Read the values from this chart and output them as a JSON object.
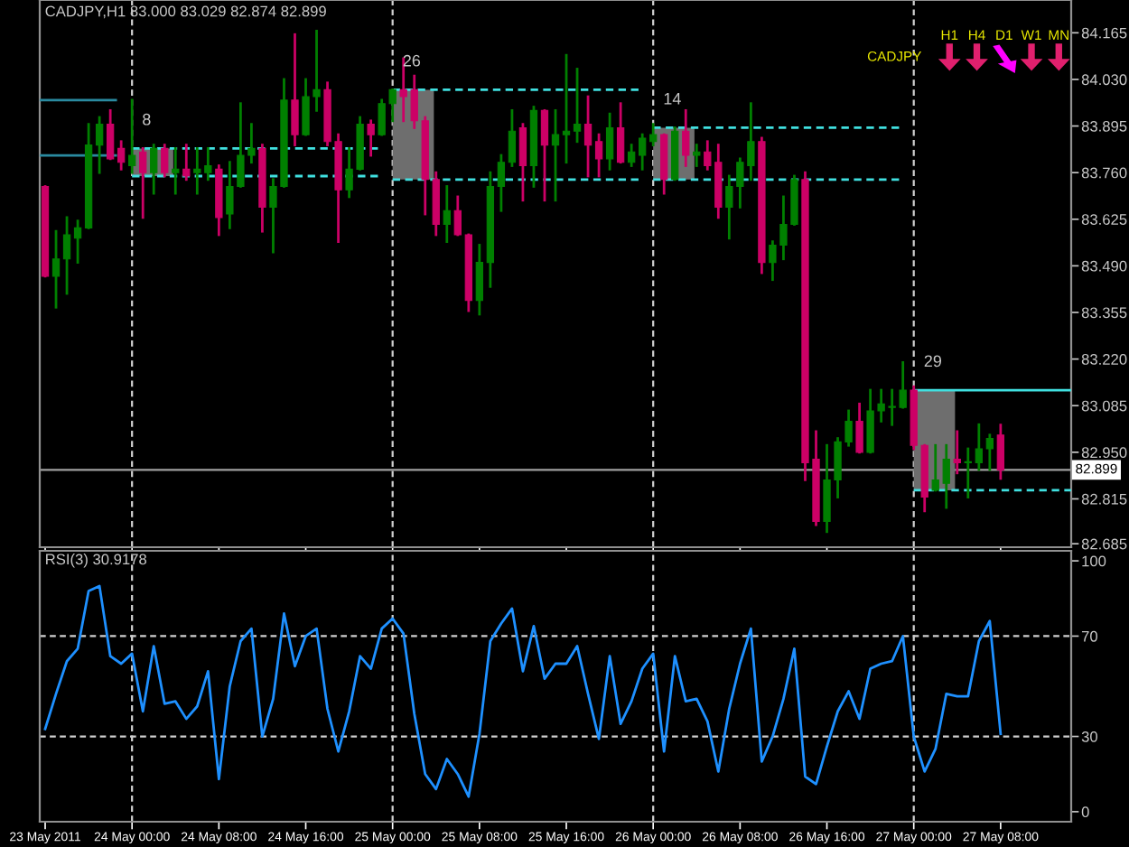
{
  "chart_data": [
    {
      "type": "candlestick",
      "title": "CADJPY,H1 83.000 83.029 82.874 82.899",
      "x": [
        "2011-05-23T16:00",
        "2011-05-23T17:00",
        "2011-05-23T18:00",
        "2011-05-23T19:00",
        "2011-05-23T20:00",
        "2011-05-23T21:00",
        "2011-05-23T22:00",
        "2011-05-23T23:00",
        "2011-05-24T00:00",
        "2011-05-24T01:00",
        "2011-05-24T02:00",
        "2011-05-24T03:00",
        "2011-05-24T04:00",
        "2011-05-24T05:00",
        "2011-05-24T06:00",
        "2011-05-24T07:00",
        "2011-05-24T08:00",
        "2011-05-24T09:00",
        "2011-05-24T10:00",
        "2011-05-24T11:00",
        "2011-05-24T12:00",
        "2011-05-24T13:00",
        "2011-05-24T14:00",
        "2011-05-24T15:00",
        "2011-05-24T16:00",
        "2011-05-24T17:00",
        "2011-05-24T18:00",
        "2011-05-24T19:00",
        "2011-05-24T20:00",
        "2011-05-24T21:00",
        "2011-05-24T22:00",
        "2011-05-24T23:00",
        "2011-05-25T00:00",
        "2011-05-25T01:00",
        "2011-05-25T02:00",
        "2011-05-25T03:00",
        "2011-05-25T04:00",
        "2011-05-25T05:00",
        "2011-05-25T06:00",
        "2011-05-25T07:00",
        "2011-05-25T08:00",
        "2011-05-25T09:00",
        "2011-05-25T10:00",
        "2011-05-25T11:00",
        "2011-05-25T12:00",
        "2011-05-25T13:00",
        "2011-05-25T14:00",
        "2011-05-25T15:00",
        "2011-05-25T16:00",
        "2011-05-25T17:00",
        "2011-05-25T18:00",
        "2011-05-25T19:00",
        "2011-05-25T20:00",
        "2011-05-25T21:00",
        "2011-05-25T22:00",
        "2011-05-25T23:00",
        "2011-05-26T00:00",
        "2011-05-26T01:00",
        "2011-05-26T02:00",
        "2011-05-26T03:00",
        "2011-05-26T04:00",
        "2011-05-26T05:00",
        "2011-05-26T06:00",
        "2011-05-26T07:00",
        "2011-05-26T08:00",
        "2011-05-26T09:00",
        "2011-05-26T10:00",
        "2011-05-26T11:00",
        "2011-05-26T12:00",
        "2011-05-26T13:00",
        "2011-05-26T14:00",
        "2011-05-26T15:00",
        "2011-05-26T16:00",
        "2011-05-26T17:00",
        "2011-05-26T18:00",
        "2011-05-26T19:00",
        "2011-05-26T20:00",
        "2011-05-26T21:00",
        "2011-05-26T22:00",
        "2011-05-26T23:00",
        "2011-05-27T00:00",
        "2011-05-27T01:00",
        "2011-05-27T02:00",
        "2011-05-27T03:00",
        "2011-05-27T04:00",
        "2011-05-27T05:00",
        "2011-05-27T06:00",
        "2011-05-27T07:00",
        "2011-05-27T08:00"
      ],
      "ohlc": [
        [
          83.72,
          83.72,
          83.46,
          83.46
        ],
        [
          83.46,
          83.59,
          83.37,
          83.51
        ],
        [
          83.51,
          83.63,
          83.41,
          83.58
        ],
        [
          83.57,
          83.62,
          83.5,
          83.6
        ],
        [
          83.6,
          83.9,
          83.6,
          83.84
        ],
        [
          83.84,
          83.92,
          83.76,
          83.9
        ],
        [
          83.9,
          83.94,
          83.8,
          83.8
        ],
        [
          83.83,
          83.85,
          83.77,
          83.79
        ],
        [
          83.78,
          83.97,
          83.76,
          83.81
        ],
        [
          83.82,
          83.83,
          83.63,
          83.76
        ],
        [
          83.76,
          83.84,
          83.7,
          83.83
        ],
        [
          83.83,
          83.84,
          83.75,
          83.76
        ],
        [
          83.76,
          83.83,
          83.7,
          83.77
        ],
        [
          83.77,
          83.84,
          83.74,
          83.75
        ],
        [
          83.76,
          83.83,
          83.7,
          83.77
        ],
        [
          83.76,
          83.83,
          83.74,
          83.78
        ],
        [
          83.77,
          83.78,
          83.58,
          83.63
        ],
        [
          83.64,
          83.79,
          83.6,
          83.72
        ],
        [
          83.72,
          83.96,
          83.72,
          83.81
        ],
        [
          83.81,
          83.9,
          83.79,
          83.83
        ],
        [
          83.83,
          83.84,
          83.59,
          83.66
        ],
        [
          83.66,
          83.74,
          83.53,
          83.72
        ],
        [
          83.72,
          84.03,
          83.72,
          83.97
        ],
        [
          83.97,
          84.16,
          83.84,
          83.87
        ],
        [
          83.87,
          84.03,
          83.87,
          83.98
        ],
        [
          83.98,
          84.17,
          83.94,
          84.0
        ],
        [
          84.0,
          84.02,
          83.84,
          83.85
        ],
        [
          83.85,
          83.87,
          83.56,
          83.71
        ],
        [
          83.71,
          83.83,
          83.69,
          83.77
        ],
        [
          83.77,
          83.92,
          83.77,
          83.9
        ],
        [
          83.9,
          83.91,
          83.81,
          83.87
        ],
        [
          83.87,
          83.97,
          83.87,
          83.96
        ],
        [
          83.96,
          84.0,
          83.91,
          84.0
        ],
        [
          84.0,
          84.09,
          83.91,
          83.98
        ],
        [
          84.0,
          84.04,
          83.89,
          83.91
        ],
        [
          83.91,
          83.92,
          83.64,
          83.74
        ],
        [
          83.74,
          83.76,
          83.58,
          83.61
        ],
        [
          83.61,
          83.72,
          83.56,
          83.65
        ],
        [
          83.65,
          83.69,
          83.58,
          83.58
        ],
        [
          83.58,
          83.58,
          83.36,
          83.39
        ],
        [
          83.39,
          83.55,
          83.35,
          83.5
        ],
        [
          83.5,
          83.76,
          83.43,
          83.72
        ],
        [
          83.72,
          83.81,
          83.65,
          83.79
        ],
        [
          83.79,
          83.94,
          83.78,
          83.88
        ],
        [
          83.89,
          83.9,
          83.68,
          83.78
        ],
        [
          83.78,
          83.95,
          83.72,
          83.94
        ],
        [
          83.94,
          83.94,
          83.68,
          83.84
        ],
        [
          83.84,
          83.94,
          83.68,
          83.87
        ],
        [
          83.87,
          84.1,
          83.79,
          83.88
        ],
        [
          83.88,
          84.06,
          83.85,
          83.9
        ],
        [
          83.9,
          83.98,
          83.75,
          83.84
        ],
        [
          83.85,
          83.87,
          83.75,
          83.8
        ],
        [
          83.8,
          83.93,
          83.77,
          83.89
        ],
        [
          83.89,
          83.96,
          83.79,
          83.79
        ],
        [
          83.79,
          83.84,
          83.78,
          83.82
        ],
        [
          83.81,
          83.87,
          83.77,
          83.86
        ],
        [
          83.85,
          83.9,
          83.84,
          83.87
        ],
        [
          83.87,
          83.87,
          83.7,
          83.74
        ],
        [
          83.74,
          83.89,
          83.74,
          83.88
        ],
        [
          83.88,
          83.94,
          83.78,
          83.81
        ],
        [
          83.81,
          83.84,
          83.78,
          83.82
        ],
        [
          83.82,
          83.85,
          83.77,
          83.78
        ],
        [
          83.79,
          83.84,
          83.63,
          83.66
        ],
        [
          83.66,
          83.75,
          83.57,
          83.72
        ],
        [
          83.72,
          83.8,
          83.66,
          83.79
        ],
        [
          83.78,
          83.96,
          83.74,
          83.85
        ],
        [
          83.85,
          83.86,
          83.47,
          83.5
        ],
        [
          83.5,
          83.56,
          83.45,
          83.55
        ],
        [
          83.55,
          83.69,
          83.51,
          83.61
        ],
        [
          83.61,
          83.75,
          83.61,
          83.74
        ],
        [
          83.74,
          83.76,
          82.87,
          82.92
        ],
        [
          82.93,
          83.01,
          82.74,
          82.75
        ],
        [
          82.75,
          82.97,
          82.72,
          82.87
        ],
        [
          82.87,
          82.99,
          82.82,
          82.98
        ],
        [
          82.98,
          83.07,
          82.97,
          83.04
        ],
        [
          83.04,
          83.09,
          82.95,
          82.95
        ],
        [
          82.95,
          83.13,
          82.95,
          83.07
        ],
        [
          83.07,
          83.13,
          83.04,
          83.09
        ],
        [
          83.08,
          83.13,
          83.03,
          83.08
        ],
        [
          83.08,
          83.21,
          83.08,
          83.13
        ],
        [
          83.13,
          83.14,
          82.96,
          82.97
        ],
        [
          82.97,
          82.97,
          82.78,
          82.82
        ],
        [
          82.84,
          82.97,
          82.84,
          82.87
        ],
        [
          82.86,
          82.97,
          82.79,
          82.93
        ],
        [
          82.93,
          83.01,
          82.89,
          82.92
        ],
        [
          82.92,
          82.96,
          82.82,
          82.92
        ],
        [
          82.92,
          83.03,
          82.9,
          82.96
        ],
        [
          82.96,
          83.0,
          82.9,
          82.99
        ],
        [
          83.0,
          83.029,
          82.874,
          82.899
        ]
      ],
      "colors": [
        "#cc0066",
        "#008000",
        "#008000",
        "#008000",
        "#008000",
        "#008000",
        "#cc0066",
        "#cc0066",
        "#008000",
        "#cc0066",
        "#008000",
        "#cc0066",
        "#008000",
        "#cc0066",
        "#008000",
        "#008000",
        "#cc0066",
        "#008000",
        "#008000",
        "#008000",
        "#cc0066",
        "#008000",
        "#008000",
        "#cc0066",
        "#008000",
        "#008000",
        "#cc0066",
        "#cc0066",
        "#008000",
        "#008000",
        "#cc0066",
        "#008000",
        "#008000",
        "#cc0066",
        "#cc0066",
        "#cc0066",
        "#cc0066",
        "#008000",
        "#cc0066",
        "#cc0066",
        "#008000",
        "#008000",
        "#008000",
        "#008000",
        "#cc0066",
        "#008000",
        "#cc0066",
        "#008000",
        "#008000",
        "#008000",
        "#cc0066",
        "#cc0066",
        "#008000",
        "#cc0066",
        "#008000",
        "#008000",
        "#008000",
        "#cc0066",
        "#008000",
        "#cc0066",
        "#008000",
        "#cc0066",
        "#cc0066",
        "#008000",
        "#008000",
        "#008000",
        "#cc0066",
        "#008000",
        "#008000",
        "#008000",
        "#cc0066",
        "#cc0066",
        "#008000",
        "#008000",
        "#008000",
        "#cc0066",
        "#008000",
        "#008000",
        "#008000",
        "#008000",
        "#cc0066",
        "#cc0066",
        "#008000",
        "#008000",
        "#cc0066",
        "#008000",
        "#008000",
        "#008000",
        "#cc0066"
      ],
      "series": [
        {
          "type": "line",
          "x": [
            "2011-05-23T15:30",
            "2011-05-23T22:30"
          ],
          "values": [
            83.97,
            83.97
          ],
          "color": "#2a8aa0",
          "line_style": "solid"
        },
        {
          "type": "line",
          "x": [
            "2011-05-23T15:30",
            "2011-05-23T22:30"
          ],
          "values": [
            83.81,
            83.81
          ],
          "color": "#2a8aa0",
          "line_style": "solid"
        },
        {
          "type": "bar",
          "x": [
            "2011-05-24T01:54"
          ],
          "base": [
            83.75
          ],
          "values": [
            0.08
          ],
          "color": "#6e6e6e"
        },
        {
          "type": "line",
          "x": [
            "2011-05-24T00:00",
            "2011-05-24T23:00"
          ],
          "values": [
            83.83,
            83.83
          ],
          "color": "#40e0e0",
          "line_style": "dashed"
        },
        {
          "type": "line",
          "x": [
            "2011-05-24T00:00",
            "2011-05-24T23:00"
          ],
          "values": [
            83.75,
            83.75
          ],
          "color": "#40e0e0",
          "line_style": "dashed"
        },
        {
          "type": "bar",
          "x": [
            "2011-05-25T01:54"
          ],
          "base": [
            83.74
          ],
          "values": [
            0.26
          ],
          "color": "#6e6e6e"
        },
        {
          "type": "line",
          "x": [
            "2011-05-25T00:00",
            "2011-05-25T23:00"
          ],
          "values": [
            84.0,
            84.0
          ],
          "color": "#40e0e0",
          "line_style": "dashed"
        },
        {
          "type": "line",
          "x": [
            "2011-05-25T00:00",
            "2011-05-25T23:00"
          ],
          "values": [
            83.74,
            83.74
          ],
          "color": "#40e0e0",
          "line_style": "dashed"
        },
        {
          "type": "bar",
          "x": [
            "2011-05-26T01:54"
          ],
          "base": [
            83.74
          ],
          "values": [
            0.15
          ],
          "color": "#6e6e6e"
        },
        {
          "type": "line",
          "x": [
            "2011-05-26T00:00",
            "2011-05-26T23:00"
          ],
          "values": [
            83.89,
            83.89
          ],
          "color": "#40e0e0",
          "line_style": "dashed"
        },
        {
          "type": "line",
          "x": [
            "2011-05-26T00:00",
            "2011-05-26T23:00"
          ],
          "values": [
            83.74,
            83.74
          ],
          "color": "#40e0e0",
          "line_style": "dashed"
        },
        {
          "type": "bar",
          "x": [
            "2011-05-27T01:54"
          ],
          "base": [
            82.84
          ],
          "values": [
            0.29
          ],
          "color": "#6e6e6e"
        },
        {
          "type": "line",
          "x": [
            "2011-05-27T00:00",
            "2011-05-27T14:30"
          ],
          "values": [
            83.13,
            83.13
          ],
          "color": "#40e0e0",
          "line_style": "solid"
        },
        {
          "type": "line",
          "x": [
            "2011-05-27T00:00",
            "2011-05-27T14:30"
          ],
          "values": [
            82.84,
            82.84
          ],
          "color": "#40e0e0",
          "line_style": "dashed"
        }
      ],
      "annotations": [
        {
          "text": "8",
          "x": "2011-05-24T00:00",
          "y": 83.83
        },
        {
          "text": "26",
          "x": "2011-05-25T00:00",
          "y": 84.0
        },
        {
          "text": "14",
          "x": "2011-05-26T00:00",
          "y": 83.89
        },
        {
          "text": "29",
          "x": "2011-05-27T00:00",
          "y": 83.13
        },
        "CADJPY",
        "H1",
        "H4",
        "D1",
        "W1",
        "MN"
      ],
      "ref_lines": [
        {
          "axis": "x",
          "value": "2011-05-24T00:00",
          "color": "#d0d0d0",
          "line_style": "dashed"
        },
        {
          "axis": "x",
          "value": "2011-05-25T00:00",
          "color": "#d0d0d0",
          "line_style": "dashed"
        },
        {
          "axis": "x",
          "value": "2011-05-26T00:00",
          "color": "#d0d0d0",
          "line_style": "dashed"
        },
        {
          "axis": "x",
          "value": "2011-05-27T00:00",
          "color": "#d0d0d0",
          "line_style": "dashed"
        },
        {
          "axis": "y",
          "value": 82.899,
          "label": "82.899",
          "color": "#a0a0a0",
          "line_style": "solid"
        }
      ],
      "xlim": [
        "2011-05-23T15:30",
        "2011-05-27T14:30"
      ],
      "xticks": [
        {
          "value": "2011-05-23T16:00",
          "label": null
        },
        {
          "value": "2011-05-24T00:00",
          "label": null
        },
        {
          "value": "2011-05-24T08:00",
          "label": null
        },
        {
          "value": "2011-05-24T16:00",
          "label": null
        },
        {
          "value": "2011-05-25T00:00",
          "label": null
        },
        {
          "value": "2011-05-25T08:00",
          "label": null
        },
        {
          "value": "2011-05-25T16:00",
          "label": null
        },
        {
          "value": "2011-05-26T00:00",
          "label": null
        },
        {
          "value": "2011-05-26T08:00",
          "label": null
        },
        {
          "value": "2011-05-26T16:00",
          "label": null
        },
        {
          "value": "2011-05-27T00:00",
          "label": null
        },
        {
          "value": "2011-05-27T08:00",
          "label": null
        }
      ],
      "tick_labels": "y",
      "ylim": [
        82.675,
        84.26
      ],
      "yticks": [
        84.165,
        {
          "value": 84.03,
          "label": "84.030"
        },
        83.895,
        {
          "value": 83.76,
          "label": "83.760"
        },
        83.625,
        {
          "value": 83.49,
          "label": "83.490"
        },
        83.355,
        {
          "value": 83.22,
          "label": "83.220"
        },
        83.085,
        {
          "value": 82.95,
          "label": "82.950"
        },
        82.815,
        82.685
      ],
      "grid": false,
      "legend": false
    },
    {
      "type": "line",
      "title": "RSI(3) 30.9178",
      "color": "#1e90ff",
      "x": [
        "2011-05-23T16:00",
        "2011-05-23T17:00",
        "2011-05-23T18:00",
        "2011-05-23T19:00",
        "2011-05-23T20:00",
        "2011-05-23T21:00",
        "2011-05-23T22:00",
        "2011-05-23T23:00",
        "2011-05-24T00:00",
        "2011-05-24T01:00",
        "2011-05-24T02:00",
        "2011-05-24T03:00",
        "2011-05-24T04:00",
        "2011-05-24T05:00",
        "2011-05-24T06:00",
        "2011-05-24T07:00",
        "2011-05-24T08:00",
        "2011-05-24T09:00",
        "2011-05-24T10:00",
        "2011-05-24T11:00",
        "2011-05-24T12:00",
        "2011-05-24T13:00",
        "2011-05-24T14:00",
        "2011-05-24T15:00",
        "2011-05-24T16:00",
        "2011-05-24T17:00",
        "2011-05-24T18:00",
        "2011-05-24T19:00",
        "2011-05-24T20:00",
        "2011-05-24T21:00",
        "2011-05-24T22:00",
        "2011-05-24T23:00",
        "2011-05-25T00:00",
        "2011-05-25T01:00",
        "2011-05-25T02:00",
        "2011-05-25T03:00",
        "2011-05-25T04:00",
        "2011-05-25T05:00",
        "2011-05-25T06:00",
        "2011-05-25T07:00",
        "2011-05-25T08:00",
        "2011-05-25T09:00",
        "2011-05-25T10:00",
        "2011-05-25T11:00",
        "2011-05-25T12:00",
        "2011-05-25T13:00",
        "2011-05-25T14:00",
        "2011-05-25T15:00",
        "2011-05-25T16:00",
        "2011-05-25T17:00",
        "2011-05-25T18:00",
        "2011-05-25T19:00",
        "2011-05-25T20:00",
        "2011-05-25T21:00",
        "2011-05-25T22:00",
        "2011-05-25T23:00",
        "2011-05-26T00:00",
        "2011-05-26T01:00",
        "2011-05-26T02:00",
        "2011-05-26T03:00",
        "2011-05-26T04:00",
        "2011-05-26T05:00",
        "2011-05-26T06:00",
        "2011-05-26T07:00",
        "2011-05-26T08:00",
        "2011-05-26T09:00",
        "2011-05-26T10:00",
        "2011-05-26T11:00",
        "2011-05-26T12:00",
        "2011-05-26T13:00",
        "2011-05-26T14:00",
        "2011-05-26T15:00",
        "2011-05-26T16:00",
        "2011-05-26T17:00",
        "2011-05-26T18:00",
        "2011-05-26T19:00",
        "2011-05-26T20:00",
        "2011-05-26T21:00",
        "2011-05-26T22:00",
        "2011-05-26T23:00",
        "2011-05-27T00:00",
        "2011-05-27T01:00",
        "2011-05-27T02:00",
        "2011-05-27T03:00",
        "2011-05-27T04:00",
        "2011-05-27T05:00",
        "2011-05-27T06:00",
        "2011-05-27T07:00",
        "2011-05-27T08:00"
      ],
      "values": [
        33,
        47,
        60,
        65,
        88,
        90,
        62,
        59,
        63,
        40,
        66,
        43,
        44,
        37,
        42,
        56,
        13,
        50,
        68,
        73,
        30,
        45,
        79,
        58,
        70,
        73,
        41,
        24,
        40,
        62,
        57,
        73,
        77,
        71,
        39,
        15,
        9,
        21,
        15,
        6,
        31,
        68,
        75,
        81,
        56,
        74,
        53,
        59,
        59,
        66,
        47,
        29,
        62,
        35,
        44,
        57,
        63,
        24,
        62,
        44,
        45,
        36,
        16,
        41,
        59,
        73,
        20,
        30,
        45,
        65,
        14,
        11,
        26,
        40,
        48,
        37,
        57,
        59,
        60,
        70,
        30,
        16,
        25,
        47,
        46,
        46,
        68,
        76,
        31
      ],
      "ref_lines": [
        {
          "axis": "x",
          "value": "2011-05-24T00:00",
          "color": "#d0d0d0",
          "line_style": "dashed"
        },
        {
          "axis": "x",
          "value": "2011-05-25T00:00",
          "color": "#d0d0d0",
          "line_style": "dashed"
        },
        {
          "axis": "x",
          "value": "2011-05-26T00:00",
          "color": "#d0d0d0",
          "line_style": "dashed"
        },
        {
          "axis": "x",
          "value": "2011-05-27T00:00",
          "color": "#d0d0d0",
          "line_style": "dashed"
        },
        {
          "axis": "y",
          "value": 70,
          "color": "#d0d0d0",
          "line_style": "dashed"
        },
        {
          "axis": "y",
          "value": 30,
          "color": "#d0d0d0",
          "line_style": "dashed"
        }
      ],
      "xlim": [
        "2011-05-23T15:30",
        "2011-05-27T14:30"
      ],
      "xticks": [
        {
          "value": "2011-05-23T16:00",
          "label": "23 May 2011"
        },
        {
          "value": "2011-05-24T00:00",
          "label": "24 May 00:00"
        },
        {
          "value": "2011-05-24T08:00",
          "label": "24 May 08:00"
        },
        {
          "value": "2011-05-24T16:00",
          "label": "24 May 16:00"
        },
        {
          "value": "2011-05-25T00:00",
          "label": "25 May 00:00"
        },
        {
          "value": "2011-05-25T08:00",
          "label": "25 May 08:00"
        },
        {
          "value": "2011-05-25T16:00",
          "label": "25 May 16:00"
        },
        {
          "value": "2011-05-26T00:00",
          "label": "26 May 00:00"
        },
        {
          "value": "2011-05-26T08:00",
          "label": "26 May 08:00"
        },
        {
          "value": "2011-05-26T16:00",
          "label": "26 May 16:00"
        },
        {
          "value": "2011-05-27T00:00",
          "label": "27 May 00:00"
        },
        {
          "value": "2011-05-27T08:00",
          "label": "27 May 08:00"
        }
      ],
      "ylim": [
        -4,
        104
      ],
      "yticks": [
        0,
        30,
        70,
        100
      ],
      "grid": false,
      "legend": false
    }
  ]
}
